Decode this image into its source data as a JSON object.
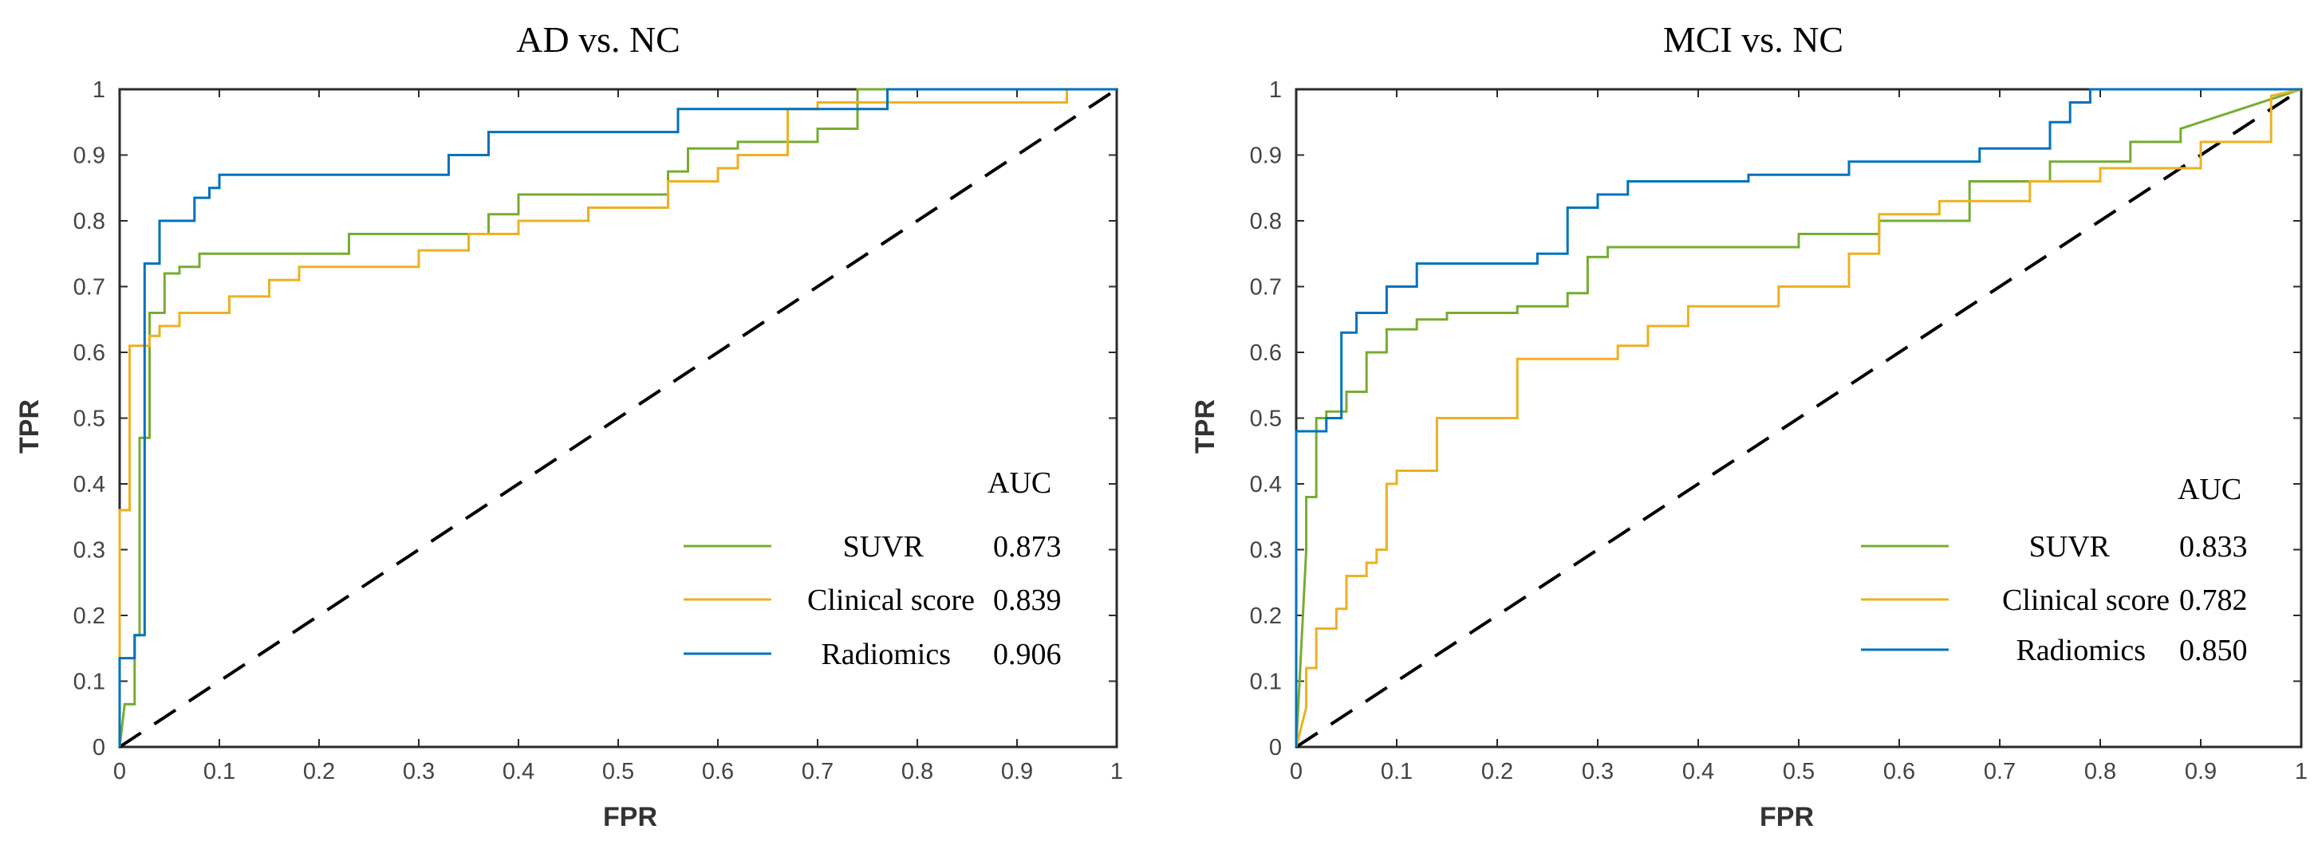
{
  "colors": {
    "suvr": "#77ac30",
    "clinical": "#edb120",
    "radiomics": "#0072bd",
    "chance": "#000000"
  },
  "chart_data": [
    {
      "type": "line",
      "title": "AD vs. NC",
      "xlabel": "FPR",
      "ylabel": "TPR",
      "xlim": [
        0,
        1
      ],
      "ylim": [
        0,
        1
      ],
      "xticks": [
        "0",
        "0.1",
        "0.2",
        "0.3",
        "0.4",
        "0.5",
        "0.6",
        "0.7",
        "0.8",
        "0.9",
        "1"
      ],
      "yticks": [
        "0",
        "0.1",
        "0.2",
        "0.3",
        "0.4",
        "0.5",
        "0.6",
        "0.7",
        "0.8",
        "0.9",
        "1"
      ],
      "legend_header": "AUC",
      "legend_position": "lower-right",
      "chance_line": true,
      "series": [
        {
          "name": "SUVR",
          "color_key": "suvr",
          "auc": "0.873",
          "x": [
            0,
            0.005,
            0.015,
            0.015,
            0.02,
            0.02,
            0.03,
            0.03,
            0.045,
            0.045,
            0.06,
            0.06,
            0.08,
            0.08,
            0.23,
            0.23,
            0.37,
            0.37,
            0.4,
            0.4,
            0.55,
            0.55,
            0.57,
            0.57,
            0.62,
            0.62,
            0.7,
            0.7,
            0.74,
            0.74,
            1.0
          ],
          "y": [
            0,
            0.065,
            0.065,
            0.17,
            0.17,
            0.47,
            0.47,
            0.66,
            0.66,
            0.72,
            0.72,
            0.73,
            0.73,
            0.75,
            0.75,
            0.78,
            0.78,
            0.81,
            0.81,
            0.84,
            0.84,
            0.875,
            0.875,
            0.91,
            0.91,
            0.92,
            0.92,
            0.94,
            0.94,
            1.0,
            1.0
          ]
        },
        {
          "name": "Clinical score",
          "color_key": "clinical",
          "auc": "0.839",
          "x": [
            0,
            0,
            0.01,
            0.01,
            0.03,
            0.03,
            0.04,
            0.04,
            0.06,
            0.06,
            0.11,
            0.11,
            0.15,
            0.15,
            0.18,
            0.18,
            0.3,
            0.3,
            0.35,
            0.35,
            0.4,
            0.4,
            0.47,
            0.47,
            0.55,
            0.55,
            0.6,
            0.6,
            0.62,
            0.62,
            0.67,
            0.67,
            0.7,
            0.7,
            0.95,
            0.95,
            1.0
          ],
          "y": [
            0,
            0.36,
            0.36,
            0.61,
            0.61,
            0.625,
            0.625,
            0.64,
            0.64,
            0.66,
            0.66,
            0.685,
            0.685,
            0.71,
            0.71,
            0.73,
            0.73,
            0.755,
            0.755,
            0.78,
            0.78,
            0.8,
            0.8,
            0.82,
            0.82,
            0.86,
            0.86,
            0.88,
            0.88,
            0.9,
            0.9,
            0.97,
            0.97,
            0.98,
            0.98,
            1.0,
            1.0
          ]
        },
        {
          "name": "Radiomics",
          "color_key": "radiomics",
          "auc": "0.906",
          "x": [
            0,
            0,
            0.015,
            0.015,
            0.025,
            0.025,
            0.04,
            0.04,
            0.075,
            0.075,
            0.09,
            0.09,
            0.1,
            0.1,
            0.33,
            0.33,
            0.37,
            0.37,
            0.56,
            0.56,
            0.77,
            0.77,
            1.0
          ],
          "y": [
            0,
            0.135,
            0.135,
            0.17,
            0.17,
            0.735,
            0.735,
            0.8,
            0.8,
            0.835,
            0.835,
            0.85,
            0.85,
            0.87,
            0.87,
            0.9,
            0.9,
            0.935,
            0.935,
            0.97,
            0.97,
            1.0,
            1.0
          ]
        }
      ]
    },
    {
      "type": "line",
      "title": "MCI vs. NC",
      "xlabel": "FPR",
      "ylabel": "TPR",
      "xlim": [
        0,
        1
      ],
      "ylim": [
        0,
        1
      ],
      "xticks": [
        "0",
        "0.1",
        "0.2",
        "0.3",
        "0.4",
        "0.5",
        "0.6",
        "0.7",
        "0.8",
        "0.9",
        "1"
      ],
      "yticks": [
        "0",
        "0.1",
        "0.2",
        "0.3",
        "0.4",
        "0.5",
        "0.6",
        "0.7",
        "0.8",
        "0.9",
        "1"
      ],
      "legend_header": "AUC",
      "legend_position": "lower-right",
      "chance_line": true,
      "series": [
        {
          "name": "SUVR",
          "color_key": "suvr",
          "auc": "0.833",
          "x": [
            0,
            0.01,
            0.01,
            0.02,
            0.02,
            0.03,
            0.03,
            0.05,
            0.05,
            0.07,
            0.07,
            0.09,
            0.09,
            0.12,
            0.12,
            0.15,
            0.15,
            0.22,
            0.22,
            0.27,
            0.27,
            0.29,
            0.29,
            0.31,
            0.31,
            0.5,
            0.5,
            0.58,
            0.58,
            0.67,
            0.67,
            0.75,
            0.75,
            0.83,
            0.83,
            0.88,
            0.88,
            1.0
          ],
          "y": [
            0,
            0.3,
            0.38,
            0.38,
            0.5,
            0.5,
            0.51,
            0.51,
            0.54,
            0.54,
            0.6,
            0.6,
            0.635,
            0.635,
            0.65,
            0.65,
            0.66,
            0.66,
            0.67,
            0.67,
            0.69,
            0.69,
            0.745,
            0.745,
            0.76,
            0.76,
            0.78,
            0.78,
            0.8,
            0.8,
            0.86,
            0.86,
            0.89,
            0.89,
            0.92,
            0.92,
            0.94,
            1.0
          ]
        },
        {
          "name": "Clinical score",
          "color_key": "clinical",
          "auc": "0.782",
          "x": [
            0,
            0.01,
            0.01,
            0.02,
            0.02,
            0.04,
            0.04,
            0.05,
            0.05,
            0.07,
            0.07,
            0.08,
            0.08,
            0.09,
            0.09,
            0.1,
            0.1,
            0.14,
            0.14,
            0.22,
            0.22,
            0.32,
            0.32,
            0.35,
            0.35,
            0.39,
            0.39,
            0.48,
            0.48,
            0.55,
            0.55,
            0.58,
            0.58,
            0.64,
            0.64,
            0.73,
            0.73,
            0.8,
            0.8,
            0.9,
            0.9,
            0.97,
            0.97,
            1.0
          ],
          "y": [
            0,
            0.06,
            0.12,
            0.12,
            0.18,
            0.18,
            0.21,
            0.21,
            0.26,
            0.26,
            0.28,
            0.28,
            0.3,
            0.3,
            0.4,
            0.4,
            0.42,
            0.42,
            0.5,
            0.5,
            0.59,
            0.59,
            0.61,
            0.61,
            0.64,
            0.64,
            0.67,
            0.67,
            0.7,
            0.7,
            0.75,
            0.75,
            0.81,
            0.81,
            0.83,
            0.83,
            0.86,
            0.86,
            0.88,
            0.88,
            0.92,
            0.92,
            0.99,
            1.0
          ]
        },
        {
          "name": "Radiomics",
          "color_key": "radiomics",
          "auc": "0.850",
          "x": [
            0,
            0,
            0.03,
            0.03,
            0.045,
            0.045,
            0.06,
            0.06,
            0.09,
            0.09,
            0.12,
            0.12,
            0.24,
            0.24,
            0.27,
            0.27,
            0.3,
            0.3,
            0.33,
            0.33,
            0.45,
            0.45,
            0.55,
            0.55,
            0.68,
            0.68,
            0.75,
            0.75,
            0.77,
            0.77,
            0.79,
            0.79,
            1.0
          ],
          "y": [
            0,
            0.48,
            0.48,
            0.5,
            0.5,
            0.63,
            0.63,
            0.66,
            0.66,
            0.7,
            0.7,
            0.735,
            0.735,
            0.75,
            0.75,
            0.82,
            0.82,
            0.84,
            0.84,
            0.86,
            0.86,
            0.87,
            0.87,
            0.89,
            0.89,
            0.91,
            0.91,
            0.95,
            0.95,
            0.98,
            0.98,
            1.0,
            1.0
          ]
        }
      ]
    }
  ]
}
